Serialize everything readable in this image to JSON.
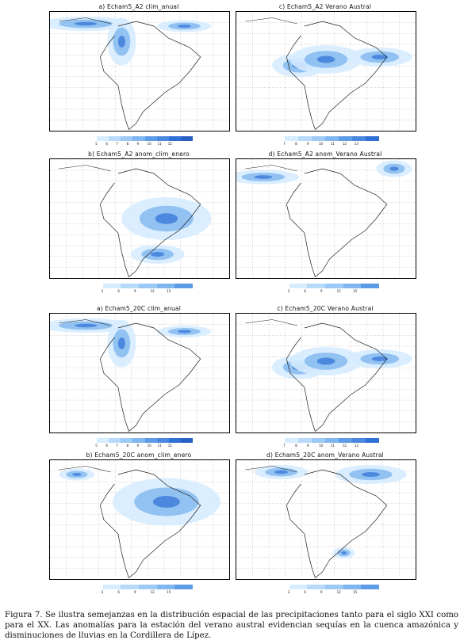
{
  "panels": [
    {
      "title": "a)  Echam5_A2  clim_anual",
      "cbar": [
        "5",
        "6",
        "7",
        "8",
        "9",
        "10",
        "11",
        "12"
      ]
    },
    {
      "title": "c)  Echam5_A2  Verano  Austral",
      "cbar": [
        "7",
        "8",
        "9",
        "10",
        "11",
        "12",
        "13"
      ]
    },
    {
      "title": "b)  Echam5_A2  anom_clim_enero",
      "cbar": [
        "3",
        "6",
        "9",
        "12",
        "15"
      ]
    },
    {
      "title": "d)  Echam5_A2  anom_Verano  Austral",
      "cbar": [
        "3",
        "6",
        "9",
        "12",
        "15"
      ]
    },
    {
      "title": "a)  Echam5_20C  clim_anual",
      "cbar": [
        "5",
        "6",
        "7",
        "8",
        "9",
        "10",
        "11",
        "12"
      ]
    },
    {
      "title": "c)  Echam5_20C  Verano  Austral",
      "cbar": [
        "7",
        "8",
        "9",
        "10",
        "11",
        "12",
        "13"
      ]
    },
    {
      "title": "b)  Echam5_20C  anom_clim_enero",
      "cbar": [
        "3",
        "6",
        "9",
        "12",
        "15"
      ]
    },
    {
      "title": "d)  Echam5_20C  anom_Verano  Austral",
      "cbar": [
        "3",
        "6",
        "9",
        "12",
        "15"
      ]
    }
  ],
  "caption": "Figura 7. Se ilustra semejanzas en la distribución espacial de las precipitaciones tanto para el siglo XXI como para el XX. Las anomalías para la estación del verano austral evidencian sequías en la cuenca amazónica y disminuciones de lluvias en la Cordillera de Lípez.",
  "colors": {
    "light": "#d6ecff",
    "mid": "#7fb6ee",
    "dark": "#2f6fd6"
  }
}
